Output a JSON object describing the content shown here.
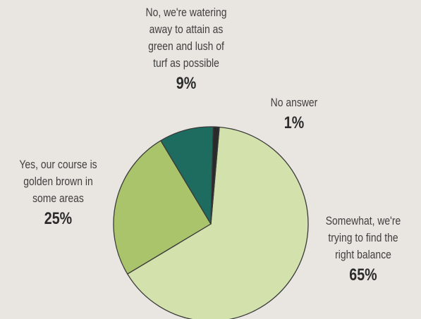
{
  "chart_data": {
    "type": "pie",
    "slices": [
      {
        "label": "Somewhat, we're\ntrying to find the\nright balance",
        "value": 65,
        "value_text": "65%",
        "color": "#d3e1ac"
      },
      {
        "label": "Yes, our course is\ngolden brown in\nsome areas",
        "value": 25,
        "value_text": "25%",
        "color": "#a9c46b"
      },
      {
        "label": "No, we're watering\naway to attain as\ngreen and lush of\nturf as possible",
        "value": 9,
        "value_text": "9%",
        "color": "#1e6b5f"
      },
      {
        "label": "No answer",
        "value": 1,
        "value_text": "1%",
        "color": "#2a2a2a"
      }
    ],
    "start_angle_deg": 5,
    "direction": "clockwise",
    "edge_color": "#3a3a3a"
  }
}
